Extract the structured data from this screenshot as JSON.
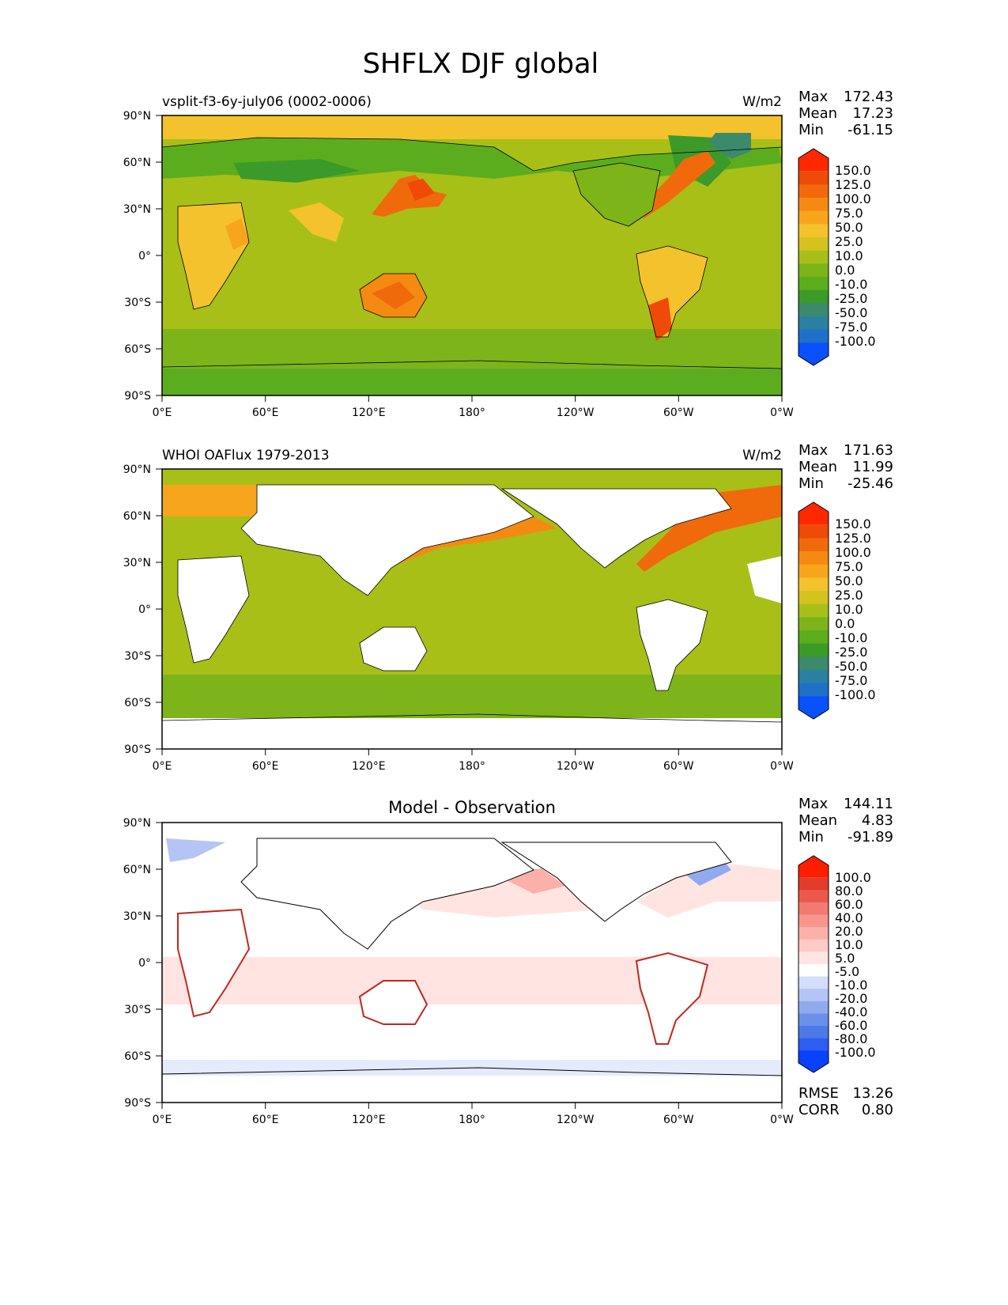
{
  "figure": {
    "title": "SHFLX DJF global",
    "lat_ticks": [
      "90°N",
      "60°N",
      "30°N",
      "0°",
      "30°S",
      "60°S",
      "90°S"
    ],
    "lon_ticks": [
      "0°E",
      "60°E",
      "120°E",
      "180°",
      "120°W",
      "60°W",
      "0°W"
    ],
    "colors": {
      "absolute": [
        "#0a50ff",
        "#1e70c8",
        "#2a80a0",
        "#3b8a6c",
        "#3c9a2a",
        "#5cad1e",
        "#7cb41a",
        "#a8bf18",
        "#d4c31e",
        "#f4c22c",
        "#f7a51c",
        "#f58a12",
        "#f06a0c",
        "#ee4a08",
        "#ff2800"
      ],
      "difference": [
        "#0a40ff",
        "#2e5ef0",
        "#4d78e8",
        "#6a90ea",
        "#90aaee",
        "#b4c4f4",
        "#d4ddfa",
        "#ffffff",
        "#ffe4e2",
        "#ffcac6",
        "#fcb0aa",
        "#f8968e",
        "#f27a70",
        "#ea5a4c",
        "#e23c2c",
        "#ff1e00"
      ]
    }
  },
  "panels": [
    {
      "id": "model",
      "left_title": "vsplit-f3-6y-july06 (0002-0006)",
      "center_title": "",
      "units": "W/m2",
      "stats": [
        {
          "label": "Max",
          "value": "172.43"
        },
        {
          "label": "Mean",
          "value": "17.23"
        },
        {
          "label": "Min",
          "value": "-61.15"
        }
      ],
      "colorbar_labels": [
        "150.0",
        "125.0",
        "100.0",
        "75.0",
        "50.0",
        "25.0",
        "10.0",
        "0.0",
        "-10.0",
        "-25.0",
        "-50.0",
        "-75.0",
        "-100.0"
      ],
      "extra_stats": []
    },
    {
      "id": "obs",
      "left_title": "WHOI OAFlux 1979-2013",
      "center_title": "",
      "units": "W/m2",
      "stats": [
        {
          "label": "Max",
          "value": "171.63"
        },
        {
          "label": "Mean",
          "value": "11.99"
        },
        {
          "label": "Min",
          "value": "-25.46"
        }
      ],
      "colorbar_labels": [
        "150.0",
        "125.0",
        "100.0",
        "75.0",
        "50.0",
        "25.0",
        "10.0",
        "0.0",
        "-10.0",
        "-25.0",
        "-50.0",
        "-75.0",
        "-100.0"
      ],
      "extra_stats": []
    },
    {
      "id": "diff",
      "left_title": "",
      "center_title": "Model - Observation",
      "units": "",
      "stats": [
        {
          "label": "Max",
          "value": "144.11"
        },
        {
          "label": "Mean",
          "value": "4.83"
        },
        {
          "label": "Min",
          "value": "-91.89"
        }
      ],
      "colorbar_labels": [
        "100.0",
        "80.0",
        "60.0",
        "40.0",
        "20.0",
        "10.0",
        "5.0",
        "-5.0",
        "-10.0",
        "-20.0",
        "-40.0",
        "-60.0",
        "-80.0",
        "-100.0"
      ],
      "extra_stats": [
        {
          "label": "RMSE",
          "value": "13.26"
        },
        {
          "label": "CORR",
          "value": "0.80"
        }
      ]
    }
  ]
}
